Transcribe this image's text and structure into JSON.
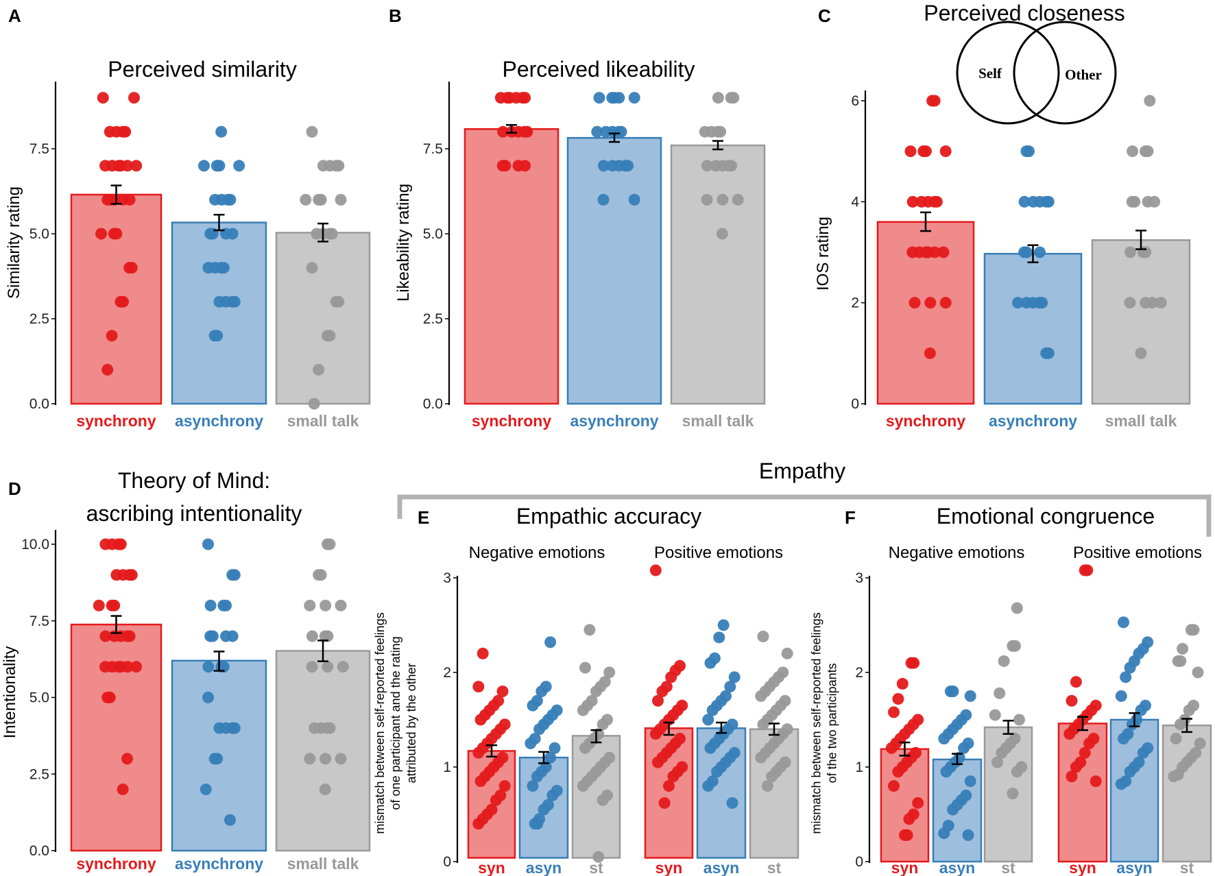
{
  "colors": {
    "synchrony": {
      "bar": "#f08b8c",
      "stroke": "#e41a1c",
      "point": "#e41a1c",
      "label": "#e41a1c"
    },
    "asynchrony": {
      "bar": "#9ebedd",
      "stroke": "#377eb8",
      "point": "#377eb8",
      "label": "#377eb8"
    },
    "small_talk": {
      "bar": "#c8c8c8",
      "stroke": "#999999",
      "point": "#999999",
      "label": "#999999"
    }
  },
  "empathy_header": "Empathy",
  "venn": {
    "left": "Self",
    "right": "Other"
  },
  "chart_data": [
    {
      "id": "A",
      "letter": "A",
      "type": "bar",
      "title": "Perceived similarity",
      "ylabel": "Similarity rating",
      "ylim": [
        0,
        9.3
      ],
      "ticks": [
        0,
        2.5,
        5,
        7.5
      ],
      "tick_labels": [
        "0.0",
        "2.5",
        "5.0",
        "7.5"
      ],
      "categories": [
        "synchrony",
        "asynchrony",
        "small talk"
      ],
      "keys": [
        "synchrony",
        "asynchrony",
        "small_talk"
      ],
      "values": [
        6.15,
        5.33,
        5.03
      ],
      "error": [
        [
          5.88,
          6.42
        ],
        [
          5.1,
          5.56
        ],
        [
          4.77,
          5.3
        ]
      ],
      "points": [
        [
          9,
          9,
          8,
          8,
          8,
          8,
          7,
          7,
          7,
          7,
          7,
          7,
          6,
          6,
          6,
          6,
          6,
          5,
          5,
          5,
          4,
          4,
          3,
          3,
          2,
          1
        ],
        [
          8,
          7,
          7,
          7,
          7,
          6,
          6,
          6,
          6,
          5,
          5,
          5,
          5,
          4,
          4,
          4,
          4,
          3,
          3,
          3,
          3,
          2,
          2
        ],
        [
          8,
          7,
          7,
          7,
          7,
          6,
          6,
          6,
          6,
          5,
          5,
          5,
          5,
          4,
          3,
          3,
          2,
          2,
          1,
          0
        ]
      ]
    },
    {
      "id": "B",
      "letter": "B",
      "type": "bar",
      "title": "Perceived likeability",
      "ylabel": "Likeability rating",
      "ylim": [
        0,
        9.3
      ],
      "ticks": [
        0,
        2.5,
        5,
        7.5
      ],
      "tick_labels": [
        "0.0",
        "2.5",
        "5.0",
        "7.5"
      ],
      "categories": [
        "synchrony",
        "asynchrony",
        "small talk"
      ],
      "keys": [
        "synchrony",
        "asynchrony",
        "small_talk"
      ],
      "values": [
        8.08,
        7.82,
        7.6
      ],
      "error": [
        [
          7.97,
          8.2
        ],
        [
          7.7,
          7.95
        ],
        [
          7.48,
          7.73
        ]
      ],
      "points": [
        [
          9,
          9,
          9,
          9,
          9,
          9,
          8,
          8,
          8,
          8,
          8,
          7,
          7,
          7,
          7
        ],
        [
          9,
          9,
          9,
          9,
          9,
          8,
          8,
          8,
          8,
          8,
          7,
          7,
          7,
          7,
          7,
          6,
          6
        ],
        [
          9,
          9,
          9,
          8,
          8,
          8,
          8,
          7,
          7,
          7,
          7,
          7,
          6,
          6,
          6,
          5
        ]
      ]
    },
    {
      "id": "C",
      "letter": "C",
      "type": "bar",
      "title": "Perceived closeness",
      "ylabel": "IOS rating",
      "ylim": [
        0,
        6.3
      ],
      "ticks": [
        0,
        2,
        4,
        6
      ],
      "tick_labels": [
        "0",
        "2",
        "4",
        "6"
      ],
      "categories": [
        "synchrony",
        "asynchrony",
        "small talk"
      ],
      "keys": [
        "synchrony",
        "asynchrony",
        "small_talk"
      ],
      "values": [
        3.6,
        2.97,
        3.24
      ],
      "error": [
        [
          3.42,
          3.79
        ],
        [
          2.8,
          3.14
        ],
        [
          3.06,
          3.43
        ]
      ],
      "points": [
        [
          6,
          6,
          5,
          5,
          5,
          5,
          4,
          4,
          4,
          4,
          4,
          3,
          3,
          3,
          3,
          3,
          3,
          2,
          2,
          2,
          1
        ],
        [
          5,
          5,
          4,
          4,
          4,
          4,
          4,
          3,
          3,
          3,
          2,
          2,
          2,
          2,
          2,
          1,
          1
        ],
        [
          6,
          5,
          5,
          5,
          4,
          4,
          4,
          4,
          3,
          3,
          3,
          2,
          2,
          2,
          2,
          1
        ]
      ]
    },
    {
      "id": "D",
      "letter": "D",
      "type": "bar",
      "title": [
        "Theory of Mind:",
        "ascribing intentionality"
      ],
      "ylabel": "Intentionality",
      "ylim": [
        0,
        10.5
      ],
      "ticks": [
        0,
        2.5,
        5,
        7.5,
        10
      ],
      "tick_labels": [
        "0.0",
        "2.5",
        "5.0",
        "7.5",
        "10.0"
      ],
      "categories": [
        "synchrony",
        "asynchrony",
        "small talk"
      ],
      "keys": [
        "synchrony",
        "asynchrony",
        "small_talk"
      ],
      "values": [
        7.38,
        6.2,
        6.52
      ],
      "error": [
        [
          7.1,
          7.66
        ],
        [
          5.87,
          6.5
        ],
        [
          6.18,
          6.86
        ]
      ],
      "points": [
        [
          10,
          10,
          10,
          10,
          9,
          9,
          9,
          9,
          8,
          8,
          8,
          7,
          7,
          7,
          7,
          7,
          6,
          6,
          6,
          6,
          6,
          6,
          5,
          5,
          3,
          2
        ],
        [
          10,
          9,
          9,
          8,
          8,
          8,
          7,
          7,
          7,
          7,
          6,
          6,
          6,
          5,
          4,
          4,
          4,
          4,
          3,
          3,
          2,
          1
        ],
        [
          10,
          10,
          9,
          9,
          8,
          8,
          8,
          7,
          7,
          7,
          6,
          6,
          6,
          4,
          4,
          4,
          4,
          3,
          3,
          3,
          2
        ]
      ]
    },
    {
      "id": "E",
      "letter": "E",
      "type": "bar",
      "title": "Empathic accuracy",
      "ylabel": [
        "mismatch between self-reported feelings",
        "of one participant and the rating",
        "attributed by the other"
      ],
      "ylim": [
        0,
        3.1
      ],
      "ticks": [
        0,
        1,
        2,
        3
      ],
      "tick_labels": [
        "0",
        "1",
        "2",
        "3"
      ],
      "groups": [
        {
          "name": "Negative emotions",
          "categories": [
            "syn",
            "asyn",
            "st"
          ],
          "keys": [
            "synchrony",
            "asynchrony",
            "small_talk"
          ],
          "values": [
            1.17,
            1.1,
            1.33
          ],
          "error": [
            [
              1.11,
              1.23
            ],
            [
              1.04,
              1.16
            ],
            [
              1.26,
              1.39
            ]
          ],
          "points": [
            [
              2.2,
              1.85,
              1.8,
              1.7,
              1.65,
              1.6,
              1.55,
              1.5,
              1.45,
              1.4,
              1.35,
              1.3,
              1.25,
              1.2,
              1.15,
              1.1,
              1.05,
              1.0,
              0.95,
              0.9,
              0.85,
              0.8,
              0.7,
              0.65,
              0.55,
              0.5,
              0.45,
              0.4
            ],
            [
              2.32,
              1.85,
              1.8,
              1.7,
              1.65,
              1.6,
              1.55,
              1.5,
              1.45,
              1.4,
              1.3,
              1.25,
              1.2,
              1.1,
              1.0,
              0.95,
              0.9,
              0.8,
              0.75,
              0.7,
              0.6,
              0.55,
              0.45,
              0.4,
              0.4
            ],
            [
              2.45,
              2.05,
              2.0,
              1.9,
              1.85,
              1.8,
              1.7,
              1.65,
              1.6,
              1.5,
              1.45,
              1.35,
              1.3,
              1.25,
              1.2,
              1.1,
              1.05,
              1.0,
              0.95,
              0.9,
              0.85,
              0.8,
              0.7,
              0.65,
              0.05
            ]
          ]
        },
        {
          "name": "Positive emotions",
          "categories": [
            "syn",
            "asyn",
            "st"
          ],
          "keys": [
            "synchrony",
            "asynchrony",
            "small_talk"
          ],
          "values": [
            1.41,
            1.41,
            1.4
          ],
          "error": [
            [
              1.34,
              1.47
            ],
            [
              1.36,
              1.47
            ],
            [
              1.34,
              1.46
            ]
          ],
          "points": [
            [
              3.08,
              2.07,
              2.02,
              1.95,
              1.85,
              1.8,
              1.7,
              1.65,
              1.6,
              1.55,
              1.5,
              1.45,
              1.4,
              1.35,
              1.3,
              1.25,
              1.2,
              1.15,
              1.1,
              1.05,
              1.0,
              0.95,
              0.9,
              0.8,
              0.62
            ],
            [
              2.5,
              2.37,
              2.15,
              2.1,
              1.95,
              1.85,
              1.75,
              1.7,
              1.65,
              1.6,
              1.5,
              1.45,
              1.4,
              1.35,
              1.3,
              1.25,
              1.2,
              1.15,
              1.1,
              1.05,
              1.0,
              0.95,
              0.85,
              0.8,
              0.62
            ],
            [
              2.38,
              2.2,
              2.0,
              1.95,
              1.9,
              1.85,
              1.8,
              1.75,
              1.7,
              1.65,
              1.6,
              1.55,
              1.5,
              1.45,
              1.4,
              1.35,
              1.3,
              1.25,
              1.2,
              1.15,
              1.1,
              1.05,
              1.0,
              0.95,
              0.9,
              0.8
            ]
          ]
        }
      ]
    },
    {
      "id": "F",
      "letter": "F",
      "type": "bar",
      "title": "Emotional congruence",
      "ylabel": [
        "mismatch between self-reported feelings",
        "of the two participants"
      ],
      "ylim": [
        0,
        3.1
      ],
      "ticks": [
        0,
        1,
        2,
        3
      ],
      "tick_labels": [
        "0",
        "1",
        "2",
        "3"
      ],
      "groups": [
        {
          "name": "Negative emotions",
          "categories": [
            "syn",
            "asyn",
            "st"
          ],
          "keys": [
            "synchrony",
            "asynchrony",
            "small_talk"
          ],
          "values": [
            1.19,
            1.08,
            1.42
          ],
          "error": [
            [
              1.12,
              1.26
            ],
            [
              1.03,
              1.14
            ],
            [
              1.35,
              1.49
            ]
          ],
          "points": [
            [
              2.1,
              2.1,
              1.88,
              1.72,
              1.58,
              1.5,
              1.45,
              1.4,
              1.35,
              1.3,
              1.25,
              1.2,
              1.15,
              1.1,
              1.05,
              1.0,
              0.95,
              0.8,
              0.62,
              0.5,
              0.45,
              0.28,
              0.28
            ],
            [
              1.8,
              1.8,
              1.75,
              1.55,
              1.5,
              1.45,
              1.4,
              1.35,
              1.3,
              1.25,
              1.2,
              1.1,
              1.05,
              1.0,
              0.95,
              0.85,
              0.7,
              0.65,
              0.6,
              0.55,
              0.38,
              0.3,
              0.28
            ],
            [
              2.68,
              2.28,
              2.28,
              2.12,
              1.78,
              1.55,
              1.5,
              1.3,
              1.25,
              1.2,
              1.15,
              1.05,
              1.0,
              0.95,
              0.72
            ]
          ]
        },
        {
          "name": "Positive emotions",
          "categories": [
            "syn",
            "asyn",
            "st"
          ],
          "keys": [
            "synchrony",
            "asynchrony",
            "small_talk"
          ],
          "values": [
            1.46,
            1.5,
            1.44
          ],
          "error": [
            [
              1.39,
              1.53
            ],
            [
              1.43,
              1.57
            ],
            [
              1.37,
              1.51
            ]
          ],
          "points": [
            [
              3.08,
              3.08,
              1.9,
              1.7,
              1.65,
              1.6,
              1.55,
              1.5,
              1.45,
              1.4,
              1.35,
              1.3,
              1.25,
              1.15,
              1.05,
              1.0,
              0.9,
              0.85
            ],
            [
              2.53,
              2.32,
              2.25,
              2.2,
              2.12,
              2.05,
              1.95,
              1.75,
              1.65,
              1.6,
              1.5,
              1.45,
              1.35,
              1.3,
              1.2,
              1.15,
              1.05,
              1.0,
              0.95,
              0.85,
              0.82
            ],
            [
              2.45,
              2.45,
              2.25,
              2.12,
              2.12,
              2.0,
              1.65,
              1.6,
              1.5,
              1.45,
              1.3,
              1.25,
              1.15,
              1.1,
              1.05,
              1.0,
              0.92,
              0.9
            ]
          ]
        }
      ]
    }
  ]
}
